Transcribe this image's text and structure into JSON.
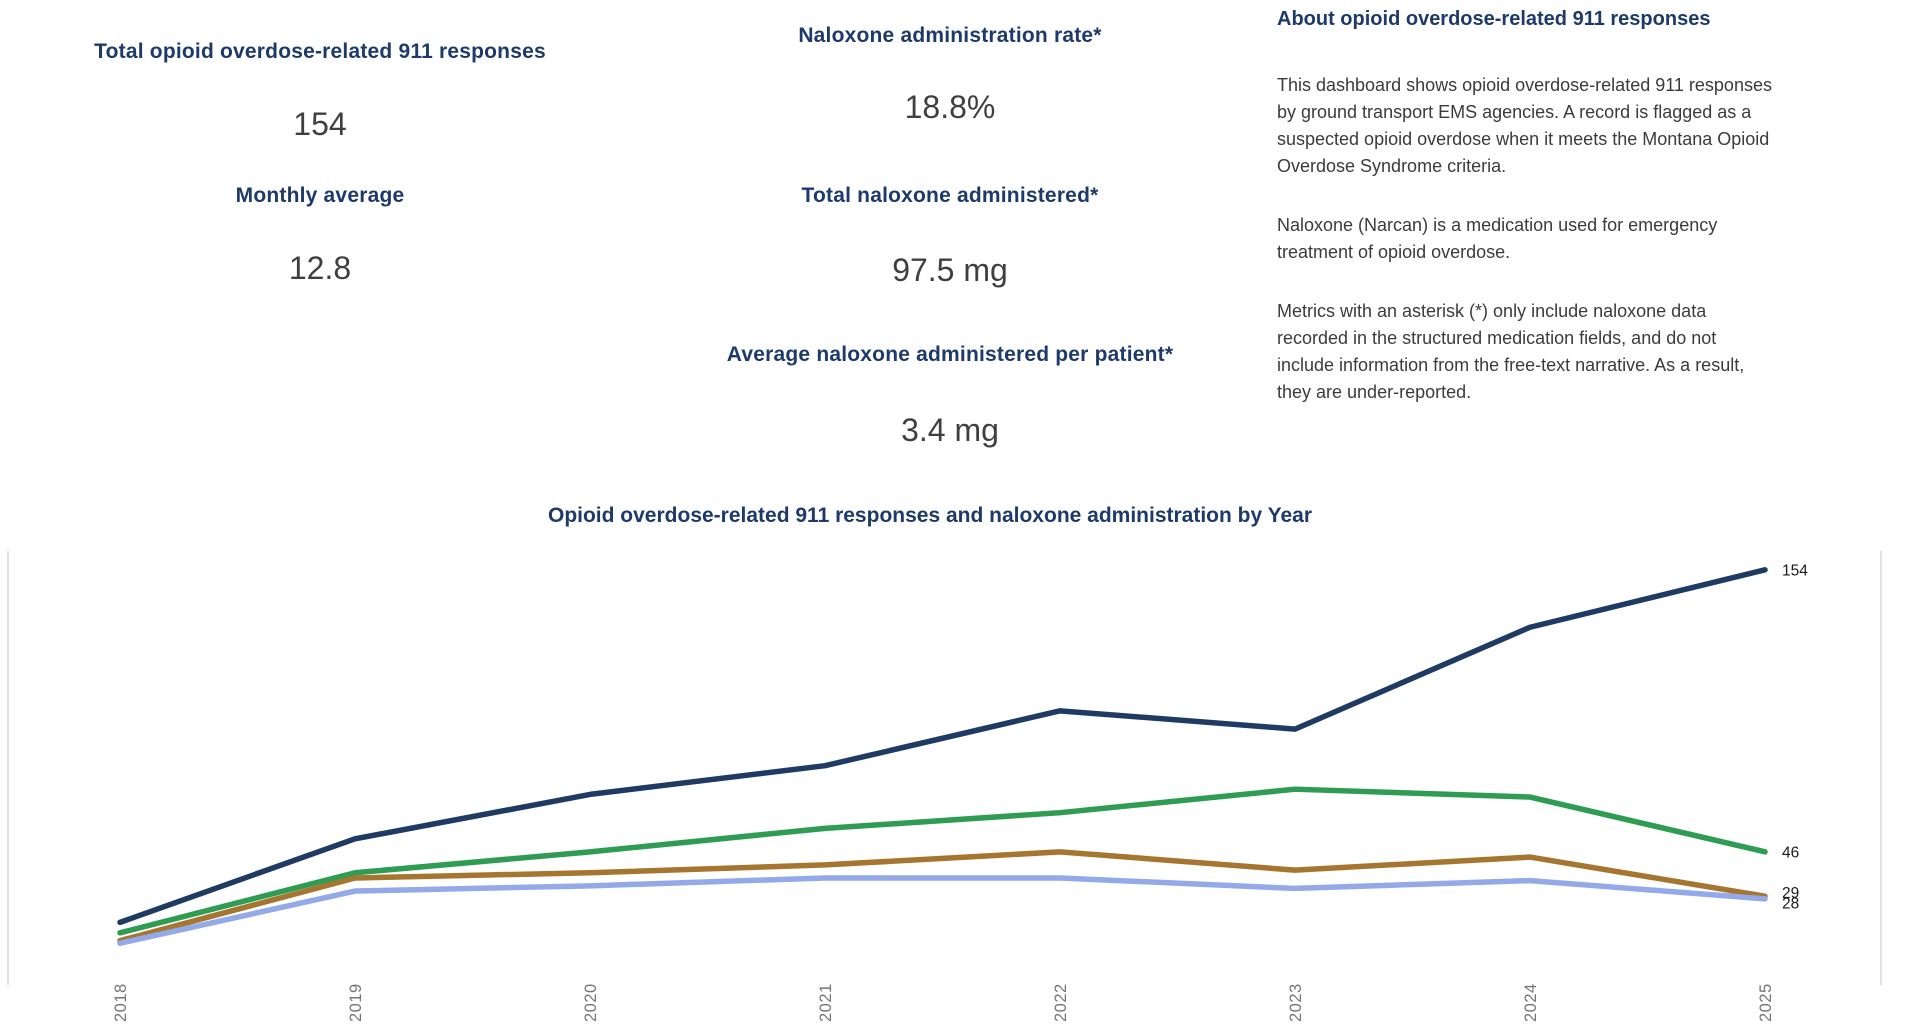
{
  "kpis_left": [
    {
      "label": "Total opioid overdose-related 911 responses",
      "value": "154"
    },
    {
      "label": "Monthly average",
      "value": "12.8"
    }
  ],
  "kpis_middle": [
    {
      "label": "Naloxone administration rate*",
      "value": "18.8%"
    },
    {
      "label": "Total naloxone administered*",
      "value": "97.5 mg"
    },
    {
      "label": "Average naloxone administered per patient*",
      "value": "3.4 mg"
    }
  ],
  "about": {
    "title": "About opioid overdose-related 911 responses",
    "paragraphs": [
      "This dashboard shows opioid overdose-related 911 responses\nby ground transport EMS agencies. A record is flagged as a\nsuspected opioid overdose when it meets the Montana Opioid\nOverdose Syndrome criteria.",
      "Naloxone (Narcan) is a medication used for emergency\ntreatment of opioid overdose.",
      "Metrics with an asterisk (*) only include naloxone data\nrecorded in the structured medication fields, and do not\ninclude information from the free-text narrative. As a result,\nthey are under-reported."
    ]
  },
  "chart_data": {
    "type": "line",
    "title": "Opioid overdose-related 911 responses and naloxone administration by Year",
    "xlabel": "",
    "ylabel": "",
    "categories": [
      "2018",
      "2019",
      "2020",
      "2021",
      "2022",
      "2023",
      "2024",
      "2025"
    ],
    "x_tick_rotation": -90,
    "grid": false,
    "legend": "none",
    "ylim": [
      0,
      163.5
    ],
    "series": [
      {
        "name": "series-navy",
        "color": "#1f3a63",
        "values": [
          19,
          51,
          68,
          79,
          100,
          93,
          132,
          154
        ],
        "end_label": "154"
      },
      {
        "name": "series-green",
        "color": "#2e9c52",
        "values": [
          15,
          38,
          46,
          55,
          61,
          70,
          67,
          46
        ],
        "end_label": "46"
      },
      {
        "name": "series-brown",
        "color": "#a6752f",
        "values": [
          12,
          36,
          38,
          41,
          46,
          39,
          44,
          29
        ],
        "end_label": "29"
      },
      {
        "name": "series-periwinkle",
        "color": "#93a9ea",
        "values": [
          11,
          31,
          33,
          36,
          36,
          32,
          35,
          28
        ],
        "end_label": "28"
      }
    ]
  },
  "colors": {
    "heading_navy": "#1e3a6a",
    "kpi_value_gray": "#3f3f3f",
    "paragraph_gray": "#3b3b3b",
    "axis_line": "#d8d8d8",
    "tick_label": "#757575",
    "end_label": "#1a1a1a",
    "background": "#ffffff"
  }
}
